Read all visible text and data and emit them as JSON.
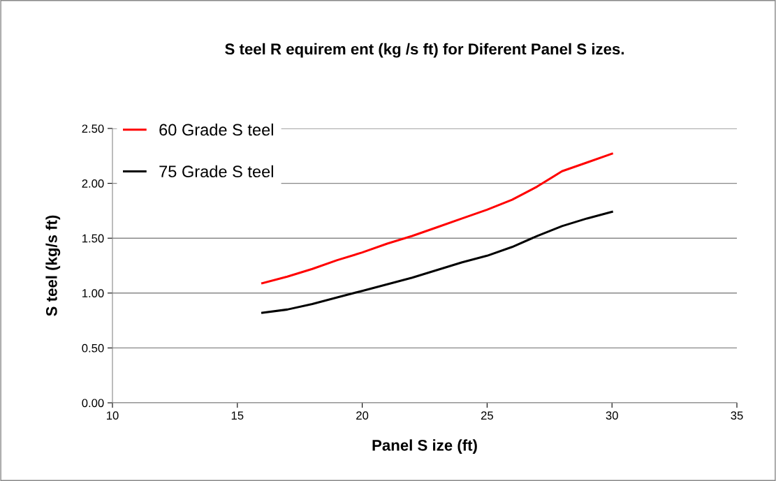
{
  "chart_data": {
    "type": "line",
    "title": "S teel R equirem ent (kg /s ft) for Diferent Panel S izes.",
    "xlabel": "Panel S ize (ft)",
    "ylabel": "S teel (kg/s ft)",
    "x": [
      16,
      17,
      18,
      19,
      20,
      21,
      22,
      23,
      24,
      25,
      26,
      27,
      28,
      29,
      30
    ],
    "series": [
      {
        "name": "60 Grade S teel",
        "color": "#ff0000",
        "values": [
          1.09,
          1.15,
          1.22,
          1.3,
          1.37,
          1.45,
          1.52,
          1.6,
          1.68,
          1.76,
          1.85,
          1.97,
          2.11,
          2.19,
          2.27
        ]
      },
      {
        "name": "75 Grade S teel",
        "color": "#000000",
        "values": [
          0.82,
          0.85,
          0.9,
          0.96,
          1.02,
          1.08,
          1.14,
          1.21,
          1.28,
          1.34,
          1.42,
          1.52,
          1.61,
          1.68,
          1.74
        ]
      }
    ],
    "xlim": [
      10,
      35
    ],
    "xticks": [
      10,
      15,
      20,
      25,
      30,
      35
    ],
    "ylim": [
      0,
      2.5
    ],
    "yticks": [
      {
        "value": 0,
        "label": "0.00"
      },
      {
        "value": 0.5,
        "label": "0.50"
      },
      {
        "value": 1,
        "label": "1.00"
      },
      {
        "value": 1.5,
        "label": "1.50"
      },
      {
        "value": 2,
        "label": "2.00"
      },
      {
        "value": 2.5,
        "label": "2.50"
      }
    ],
    "grid": "y",
    "legend": "top left",
    "marker": "none",
    "line_style": "solid"
  }
}
